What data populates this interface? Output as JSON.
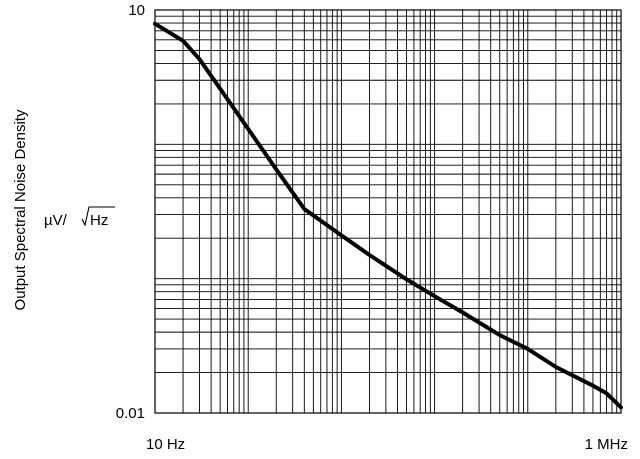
{
  "chart_data": {
    "type": "line",
    "title": "",
    "xlabel": "",
    "ylabel": "Output Spectral Noise Density",
    "unit_label": {
      "prefix": "µV/",
      "radicand": "Hz"
    },
    "x_scale": "log",
    "y_scale": "log",
    "xlim": [
      10,
      1000000
    ],
    "ylim": [
      0.01,
      10
    ],
    "x_tick_labels": [
      {
        "value": 10,
        "label": "10 Hz"
      },
      {
        "value": 1000000,
        "label": "1 MHz"
      }
    ],
    "y_tick_labels": [
      {
        "value": 10,
        "label": "10"
      },
      {
        "value": 0.01,
        "label": "0.01"
      }
    ],
    "grid": true,
    "grid_minor": true,
    "line_color": "#000000",
    "grid_color": "#000000",
    "series": [
      {
        "x": [
          10,
          20,
          30,
          50,
          100,
          200,
          400,
          1000,
          2000,
          5000,
          10000,
          20000,
          50000,
          100000,
          200000,
          500000,
          700000,
          1000000
        ],
        "y": [
          7.9,
          5.9,
          4.3,
          2.6,
          1.3,
          0.65,
          0.33,
          0.21,
          0.15,
          0.099,
          0.074,
          0.056,
          0.038,
          0.03,
          0.022,
          0.016,
          0.014,
          0.011
        ]
      }
    ]
  }
}
